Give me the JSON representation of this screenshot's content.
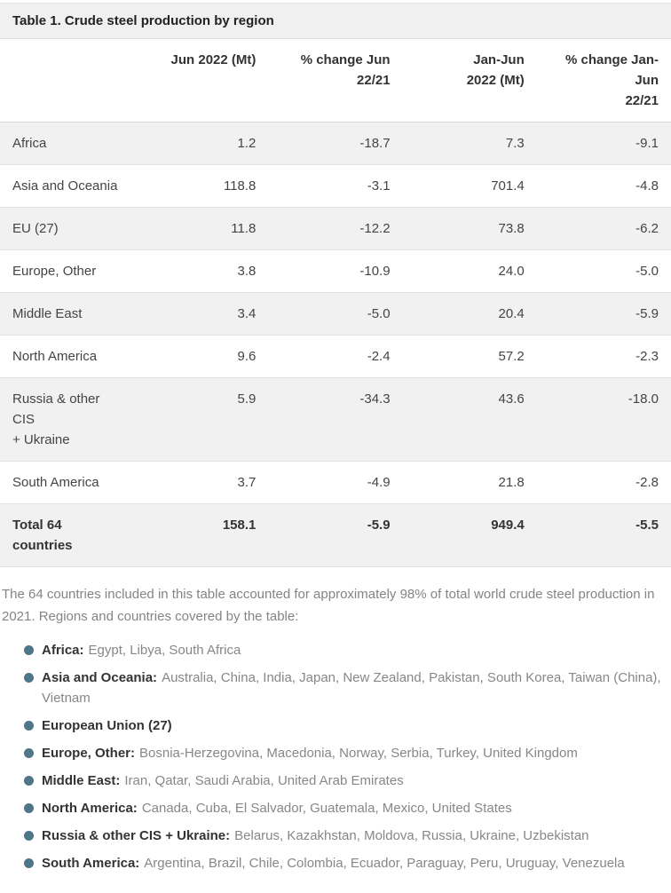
{
  "table": {
    "title": "Table 1. Crude steel production by region",
    "columns": [
      "",
      "Jun 2022 (Mt)",
      "% change Jun\n22/21",
      "Jan-Jun\n2022 (Mt)",
      "% change Jan-Jun\n22/21"
    ],
    "rows": [
      {
        "region": "Africa",
        "values": [
          "1.2",
          "-18.7",
          "7.3",
          "-9.1"
        ]
      },
      {
        "region": "Asia and Oceania",
        "values": [
          "118.8",
          "-3.1",
          "701.4",
          "-4.8"
        ]
      },
      {
        "region": "EU (27)",
        "values": [
          "11.8",
          "-12.2",
          "73.8",
          "-6.2"
        ]
      },
      {
        "region": "Europe, Other",
        "values": [
          "3.8",
          "-10.9",
          "24.0",
          "-5.0"
        ]
      },
      {
        "region": "Middle East",
        "values": [
          "3.4",
          "-5.0",
          "20.4",
          "-5.9"
        ]
      },
      {
        "region": "North America",
        "values": [
          "9.6",
          "-2.4",
          "57.2",
          "-2.3"
        ]
      },
      {
        "region": "Russia & other CIS\n+ Ukraine",
        "values": [
          "5.9",
          "-34.3",
          "43.6",
          "-18.0"
        ]
      },
      {
        "region": "South America",
        "values": [
          "3.7",
          "-4.9",
          "21.8",
          "-2.8"
        ]
      }
    ],
    "total_row": {
      "region": "Total 64 countries",
      "values": [
        "158.1",
        "-5.9",
        "949.4",
        "-5.5"
      ]
    }
  },
  "note": "The 64 countries included in this table accounted for approximately 98% of total world crude steel production in 2021. Regions and countries covered by the table:",
  "legend": [
    {
      "region": "Africa:",
      "countries": "Egypt, Libya, South Africa"
    },
    {
      "region": "Asia and Oceania:",
      "countries": "Australia, China, India, Japan, New Zealand, Pakistan, South Korea, Taiwan (China), Vietnam"
    },
    {
      "region": "European Union (27)",
      "countries": ""
    },
    {
      "region": "Europe, Other:",
      "countries": "Bosnia-Herzegovina, Macedonia, Norway, Serbia, Turkey, United Kingdom"
    },
    {
      "region": "Middle East:",
      "countries": "Iran, Qatar, Saudi Arabia, United Arab Emirates"
    },
    {
      "region": "North America:",
      "countries": "Canada, Cuba, El Salvador, Guatemala, Mexico, United States"
    },
    {
      "region": "Russia & other CIS + Ukraine:",
      "countries": "Belarus, Kazakhstan, Moldova, Russia, Ukraine, Uzbekistan"
    },
    {
      "region": "South America:",
      "countries": "Argentina, Brazil, Chile, Colombia, Ecuador, Paraguay, Peru, Uruguay, Venezuela"
    }
  ],
  "colors": {
    "bullet_accent": "#4e7588",
    "alt_row_background": "#f1f1f1",
    "title_bar_background": "#f0f0f0",
    "border": "#e3e3e3",
    "text_dark": "#333333",
    "text_muted": "#848484"
  }
}
